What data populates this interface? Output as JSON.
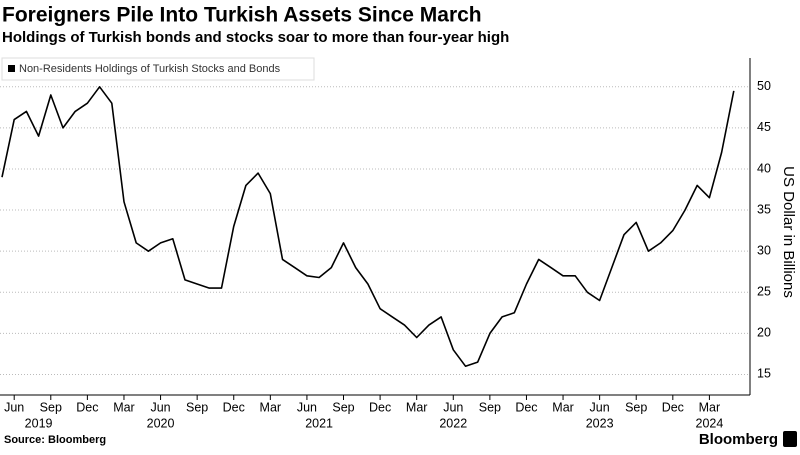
{
  "chart_data": {
    "type": "line",
    "title": "Foreigners Pile Into Turkish Assets Since March",
    "subtitle": "Holdings of Turkish bonds and stocks soar to more than four-year high",
    "y_axis_label": "US Dollar in Billions",
    "source": "Source: Bloomberg",
    "logo": "Bloomberg",
    "x": [
      "2019-05",
      "2019-06",
      "2019-07",
      "2019-08",
      "2019-09",
      "2019-10",
      "2019-11",
      "2019-12",
      "2020-01",
      "2020-02",
      "2020-03",
      "2020-04",
      "2020-05",
      "2020-06",
      "2020-07",
      "2020-08",
      "2020-09",
      "2020-10",
      "2020-11",
      "2020-12",
      "2021-01",
      "2021-02",
      "2021-03",
      "2021-04",
      "2021-05",
      "2021-06",
      "2021-07",
      "2021-08",
      "2021-09",
      "2021-10",
      "2021-11",
      "2021-12",
      "2022-01",
      "2022-02",
      "2022-03",
      "2022-04",
      "2022-05",
      "2022-06",
      "2022-07",
      "2022-08",
      "2022-09",
      "2022-10",
      "2022-11",
      "2022-12",
      "2023-01",
      "2023-02",
      "2023-03",
      "2023-04",
      "2023-05",
      "2023-06",
      "2023-07",
      "2023-08",
      "2023-09",
      "2023-10",
      "2023-11",
      "2023-12",
      "2024-01",
      "2024-02",
      "2024-03",
      "2024-04",
      "2024-05"
    ],
    "series": [
      {
        "name": "Non-Residents Holdings of Turkish Stocks and Bonds",
        "color": "#000000",
        "values": [
          39,
          46,
          47,
          44,
          49,
          45,
          47,
          48,
          50,
          48,
          36,
          31,
          30,
          31,
          31.5,
          26.5,
          26,
          25.5,
          25.5,
          33,
          38,
          39.5,
          37,
          29,
          28,
          27,
          26.8,
          28,
          31,
          28,
          26,
          23,
          22,
          21,
          19.5,
          21,
          22,
          18,
          16,
          16.5,
          20,
          22,
          22.5,
          26,
          29,
          28,
          27,
          27,
          25,
          24,
          28,
          32,
          33.5,
          30,
          31,
          32.5,
          35,
          38,
          36.5,
          42,
          49.5
        ]
      }
    ],
    "xlim": [
      "2019-05",
      "2024-06"
    ],
    "xticks": [
      {
        "value": "2019-06",
        "label": "Jun"
      },
      {
        "value": "2019-09",
        "label": "Sep"
      },
      {
        "value": "2019-12",
        "label": "Dec"
      },
      {
        "value": "2020-03",
        "label": "Mar"
      },
      {
        "value": "2020-06",
        "label": "Jun"
      },
      {
        "value": "2020-09",
        "label": "Sep"
      },
      {
        "value": "2020-12",
        "label": "Dec"
      },
      {
        "value": "2021-03",
        "label": "Mar"
      },
      {
        "value": "2021-06",
        "label": "Jun"
      },
      {
        "value": "2021-09",
        "label": "Sep"
      },
      {
        "value": "2021-12",
        "label": "Dec"
      },
      {
        "value": "2022-03",
        "label": "Mar"
      },
      {
        "value": "2022-06",
        "label": "Jun"
      },
      {
        "value": "2022-09",
        "label": "Sep"
      },
      {
        "value": "2022-12",
        "label": "Dec"
      },
      {
        "value": "2023-03",
        "label": "Mar"
      },
      {
        "value": "2023-06",
        "label": "Jun"
      },
      {
        "value": "2023-09",
        "label": "Sep"
      },
      {
        "value": "2023-12",
        "label": "Dec"
      },
      {
        "value": "2024-03",
        "label": "Mar"
      }
    ],
    "year_labels": [
      {
        "value": "2019-08",
        "label": "2019"
      },
      {
        "value": "2020-06",
        "label": "2020"
      },
      {
        "value": "2021-07",
        "label": "2021"
      },
      {
        "value": "2022-06",
        "label": "2022"
      },
      {
        "value": "2023-06",
        "label": "2023"
      },
      {
        "value": "2024-03",
        "label": "2024"
      }
    ],
    "ylim": [
      12.5,
      53.5
    ],
    "yticks": [
      15,
      20,
      25,
      30,
      35,
      40,
      45,
      50
    ],
    "grid": true
  }
}
